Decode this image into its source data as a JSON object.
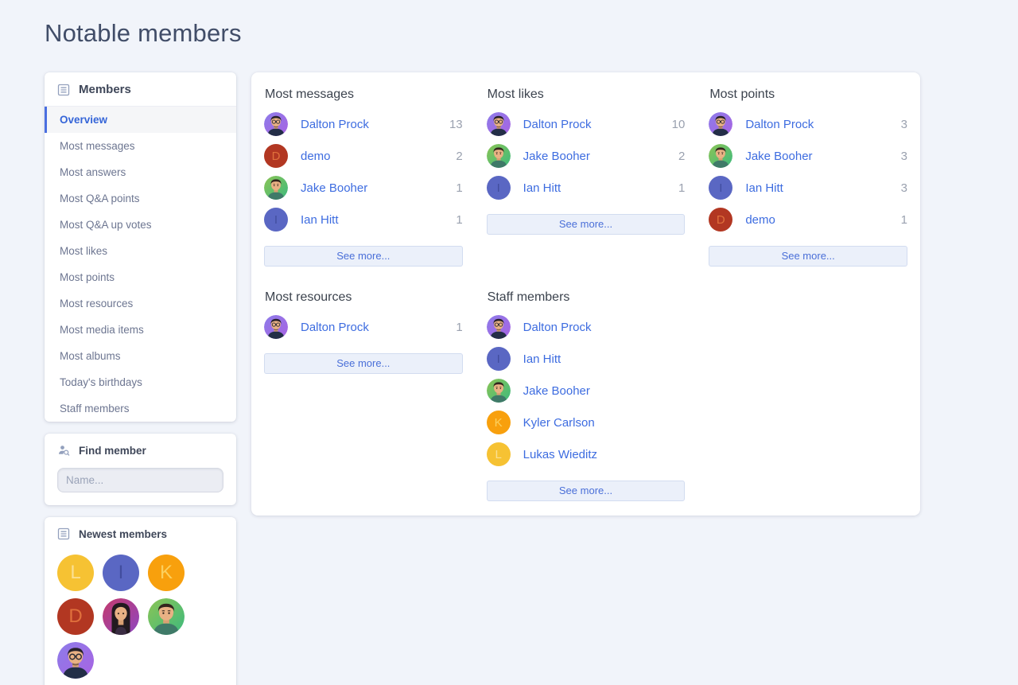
{
  "page": {
    "title": "Notable members"
  },
  "colors": {
    "page_bg": "#f1f4fa",
    "accent_link": "#3d6ce0",
    "active_nav": "#3565d8",
    "count_text": "#9aa1af"
  },
  "sidebar": {
    "members_block": {
      "title": "Members",
      "icon": "list-document-icon",
      "items": [
        {
          "label": "Overview",
          "active": true
        },
        {
          "label": "Most messages",
          "active": false
        },
        {
          "label": "Most answers",
          "active": false
        },
        {
          "label": "Most Q&A points",
          "active": false
        },
        {
          "label": "Most Q&A up votes",
          "active": false
        },
        {
          "label": "Most likes",
          "active": false
        },
        {
          "label": "Most points",
          "active": false
        },
        {
          "label": "Most resources",
          "active": false
        },
        {
          "label": "Most media items",
          "active": false
        },
        {
          "label": "Most albums",
          "active": false
        },
        {
          "label": "Today's birthdays",
          "active": false
        },
        {
          "label": "Staff members",
          "active": false
        }
      ]
    },
    "find_member": {
      "title": "Find member",
      "icon": "member-search-icon",
      "placeholder": "Name..."
    },
    "newest_members": {
      "title": "Newest members",
      "icon": "list-document-icon",
      "avatars": [
        "lukas",
        "ian",
        "kyler",
        "demo",
        "woman",
        "jake",
        "dalton"
      ]
    }
  },
  "avatars": {
    "dalton": {
      "kind": "face",
      "face": "man-purple",
      "label": "Dalton Prock"
    },
    "jake": {
      "kind": "face",
      "face": "man-green",
      "label": "Jake Booher"
    },
    "woman": {
      "kind": "face",
      "face": "woman-pink",
      "label": "member"
    },
    "demo": {
      "kind": "letter",
      "letter": "D",
      "bg": "#b23722",
      "fg": "#e0703c"
    },
    "ian": {
      "kind": "letter",
      "letter": "I",
      "bg": "#5a67c3",
      "fg": "#414d9e"
    },
    "kyler": {
      "kind": "letter",
      "letter": "K",
      "bg": "#f8a00d",
      "fg": "#fcd05e"
    },
    "lukas": {
      "kind": "letter",
      "letter": "L",
      "bg": "#f6c233",
      "fg": "#fbe091"
    }
  },
  "main": {
    "sections": [
      {
        "title": "Most messages",
        "see_more": "See more...",
        "members": [
          {
            "name": "Dalton Prock",
            "count": "13",
            "avatar": "dalton"
          },
          {
            "name": "demo",
            "count": "2",
            "avatar": "demo"
          },
          {
            "name": "Jake Booher",
            "count": "1",
            "avatar": "jake"
          },
          {
            "name": "Ian Hitt",
            "count": "1",
            "avatar": "ian"
          }
        ]
      },
      {
        "title": "Most likes",
        "see_more": "See more...",
        "members": [
          {
            "name": "Dalton Prock",
            "count": "10",
            "avatar": "dalton"
          },
          {
            "name": "Jake Booher",
            "count": "2",
            "avatar": "jake"
          },
          {
            "name": "Ian Hitt",
            "count": "1",
            "avatar": "ian"
          }
        ]
      },
      {
        "title": "Most points",
        "see_more": "See more...",
        "members": [
          {
            "name": "Dalton Prock",
            "count": "3",
            "avatar": "dalton"
          },
          {
            "name": "Jake Booher",
            "count": "3",
            "avatar": "jake"
          },
          {
            "name": "Ian Hitt",
            "count": "3",
            "avatar": "ian"
          },
          {
            "name": "demo",
            "count": "1",
            "avatar": "demo"
          }
        ]
      },
      {
        "title": "Most resources",
        "see_more": "See more...",
        "members": [
          {
            "name": "Dalton Prock",
            "count": "1",
            "avatar": "dalton"
          }
        ]
      },
      {
        "title": "Staff members",
        "see_more": "See more...",
        "members": [
          {
            "name": "Dalton Prock",
            "count": "",
            "avatar": "dalton"
          },
          {
            "name": "Ian Hitt",
            "count": "",
            "avatar": "ian"
          },
          {
            "name": "Jake Booher",
            "count": "",
            "avatar": "jake"
          },
          {
            "name": "Kyler Carlson",
            "count": "",
            "avatar": "kyler"
          },
          {
            "name": "Lukas Wieditz",
            "count": "",
            "avatar": "lukas"
          }
        ]
      }
    ]
  }
}
